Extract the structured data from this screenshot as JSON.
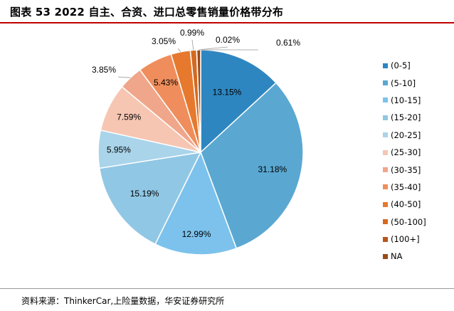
{
  "header": {
    "title": "图表 53 2022 自主、合资、进口总零售销量价格带分布"
  },
  "footer": {
    "source": "资料来源：ThinkerCar,上险量数据，华安证券研究所"
  },
  "chart_data": {
    "type": "pie",
    "title": "",
    "legend_position": "right",
    "start_angle_deg": 0,
    "direction": "clockwise",
    "slices": [
      {
        "label": "(0-5]",
        "value": 13.15,
        "display": "13.15%",
        "color": "#2e86c1"
      },
      {
        "label": "(5-10]",
        "value": 31.18,
        "display": "31.18%",
        "color": "#5aa8d2"
      },
      {
        "label": "(10-15]",
        "value": 12.99,
        "display": "12.99%",
        "color": "#7cc2ec"
      },
      {
        "label": "(15-20]",
        "value": 15.19,
        "display": "15.19%",
        "color": "#90c7e4"
      },
      {
        "label": "(20-25]",
        "value": 5.95,
        "display": "5.95%",
        "color": "#a9d4ea"
      },
      {
        "label": "(25-30]",
        "value": 7.59,
        "display": "7.59%",
        "color": "#f6c6b3"
      },
      {
        "label": "(30-35]",
        "value": 3.85,
        "display": "3.85%",
        "color": "#f0a68a"
      },
      {
        "label": "(35-40]",
        "value": 5.43,
        "display": "5.43%",
        "color": "#ef8e5c"
      },
      {
        "label": "(40-50]",
        "value": 3.05,
        "display": "3.05%",
        "color": "#e6792d"
      },
      {
        "label": "(50-100]",
        "value": 0.99,
        "display": "0.99%",
        "color": "#d46a20"
      },
      {
        "label": "(100+]",
        "value": 0.02,
        "display": "0.02%",
        "color": "#b8561a"
      },
      {
        "label": "NA",
        "value": 0.61,
        "display": "0.61%",
        "color": "#9a4a18"
      }
    ]
  }
}
